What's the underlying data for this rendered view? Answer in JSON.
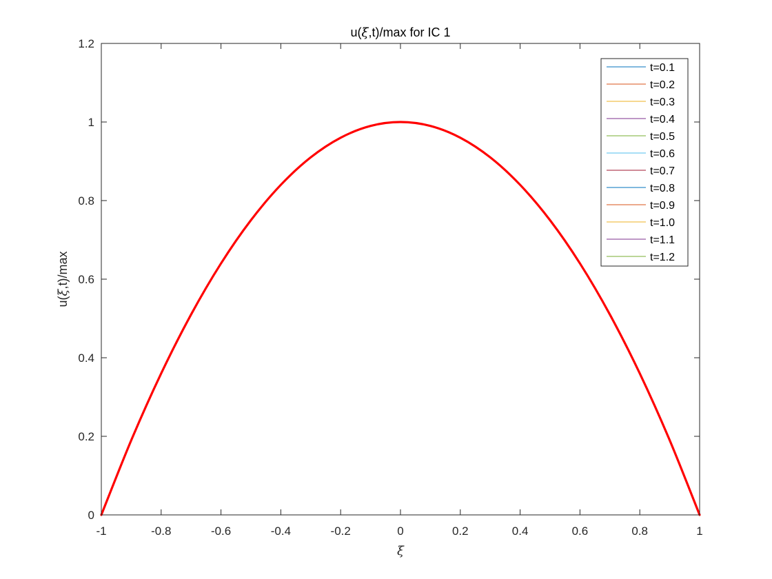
{
  "chart_data": {
    "type": "line",
    "title_parts": [
      "u(",
      "ξ",
      ",t)/max for IC 1"
    ],
    "xlabel": "ξ",
    "ylabel_parts": [
      "u(",
      "ξ",
      ",t)/max"
    ],
    "xlim": [
      -1,
      1
    ],
    "ylim": [
      0,
      1.2
    ],
    "xticks": [
      -1,
      -0.8,
      -0.6,
      -0.4,
      -0.2,
      0,
      0.2,
      0.4,
      0.6,
      0.8,
      1
    ],
    "xtick_labels": [
      "-1",
      "-0.8",
      "-0.6",
      "-0.4",
      "-0.2",
      "0",
      "0.2",
      "0.4",
      "0.6",
      "0.8",
      "1"
    ],
    "yticks": [
      0,
      0.2,
      0.4,
      0.6,
      0.8,
      1,
      1.2
    ],
    "ytick_labels": [
      "0",
      "0.2",
      "0.4",
      "0.6",
      "0.8",
      "1",
      "1.2"
    ],
    "grid": false,
    "legend_position": "top-right",
    "legend": [
      {
        "label": "t=0.1",
        "color": "#0072BD"
      },
      {
        "label": "t=0.2",
        "color": "#D95319"
      },
      {
        "label": "t=0.3",
        "color": "#EDB120"
      },
      {
        "label": "t=0.4",
        "color": "#7E2F8E"
      },
      {
        "label": "t=0.5",
        "color": "#77AC30"
      },
      {
        "label": "t=0.6",
        "color": "#4DBEEE"
      },
      {
        "label": "t=0.7",
        "color": "#A2142F"
      },
      {
        "label": "t=0.8",
        "color": "#0072BD"
      },
      {
        "label": "t=0.9",
        "color": "#D95319"
      },
      {
        "label": "t=1.0",
        "color": "#EDB120"
      },
      {
        "label": "t=1.1",
        "color": "#7E2F8E"
      },
      {
        "label": "t=1.2",
        "color": "#77AC30"
      }
    ],
    "overlay_curve": {
      "color": "#FF0000",
      "x": [
        -1,
        -0.9,
        -0.8,
        -0.7,
        -0.6,
        -0.5,
        -0.4,
        -0.3,
        -0.2,
        -0.1,
        0,
        0.1,
        0.2,
        0.3,
        0.4,
        0.5,
        0.6,
        0.7,
        0.8,
        0.9,
        1
      ],
      "y": [
        0,
        0.19,
        0.36,
        0.51,
        0.64,
        0.75,
        0.84,
        0.91,
        0.96,
        0.99,
        1,
        0.99,
        0.96,
        0.91,
        0.84,
        0.75,
        0.64,
        0.51,
        0.36,
        0.19,
        0
      ]
    }
  }
}
